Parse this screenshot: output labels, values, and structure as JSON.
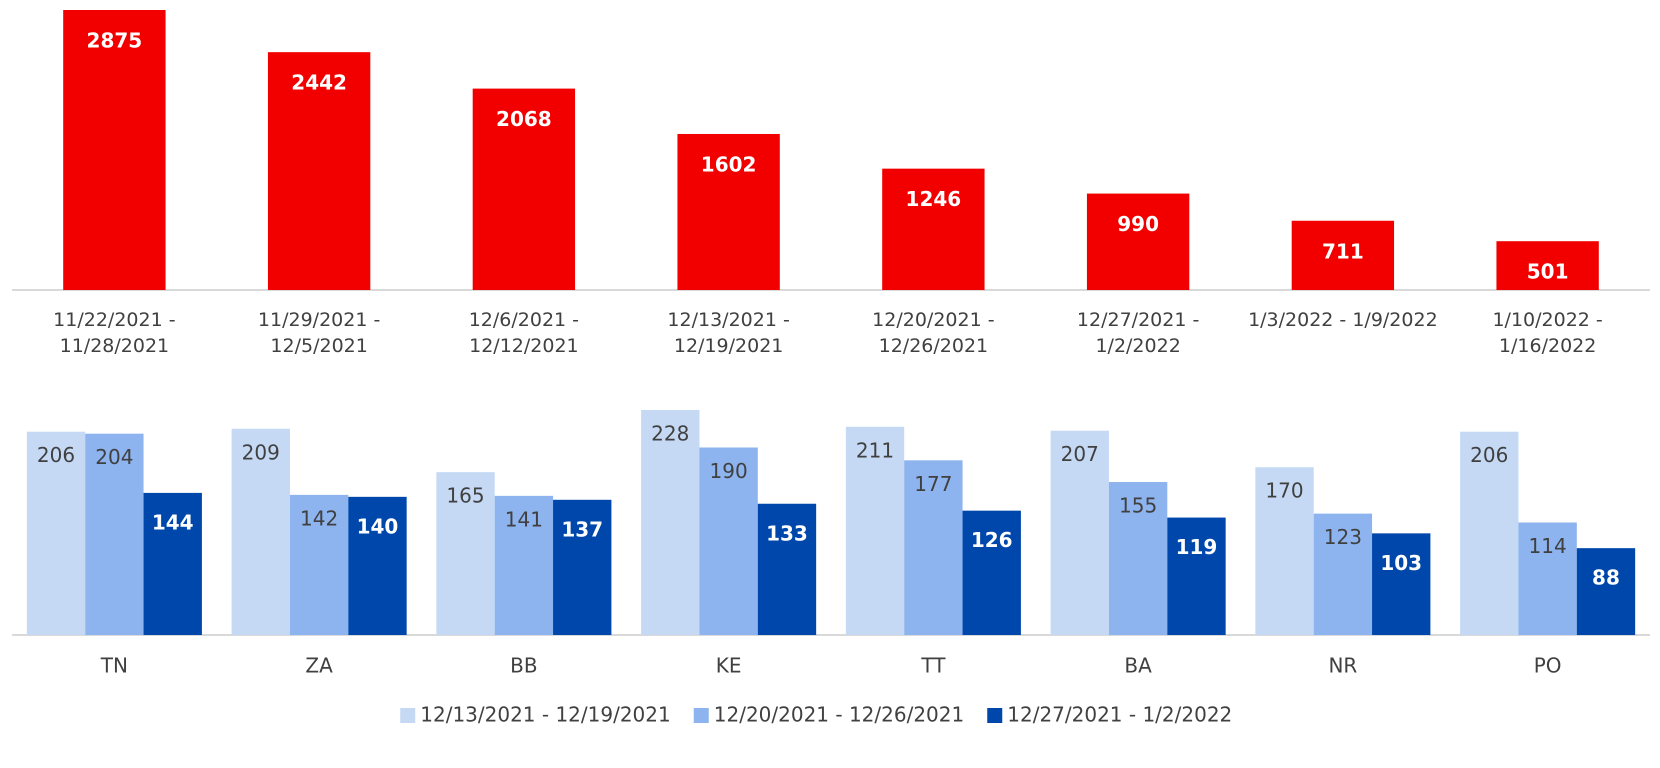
{
  "chart_data": [
    {
      "type": "bar",
      "color": "#f20000",
      "categories": [
        "11/22/2021 - 11/28/2021",
        "11/29/2021 - 12/5/2021",
        "12/6/2021 - 12/12/2021",
        "12/13/2021 - 12/19/2021",
        "12/20/2021 - 12/26/2021",
        "12/27/2021 - 1/2/2022",
        "1/3/2022 - 1/9/2022",
        "1/10/2022 - 1/16/2022"
      ],
      "values": [
        2875,
        2442,
        2068,
        1602,
        1246,
        990,
        711,
        501
      ]
    },
    {
      "type": "grouped_bar",
      "legend": "bottom",
      "categories": [
        "TN",
        "ZA",
        "BB",
        "KE",
        "TT",
        "BA",
        "NR",
        "PO"
      ],
      "series": [
        {
          "name": "12/13/2021 - 12/19/2021",
          "color": "#c5d9f5",
          "values": [
            206,
            209,
            165,
            228,
            211,
            207,
            170,
            206
          ]
        },
        {
          "name": "12/20/2021 - 12/26/2021",
          "color": "#8db4ee",
          "values": [
            204,
            142,
            141,
            190,
            177,
            155,
            123,
            114
          ]
        },
        {
          "name": "12/27/2021 - 1/2/2022",
          "color": "#0047ab",
          "values": [
            144,
            140,
            137,
            133,
            126,
            119,
            103,
            88
          ]
        }
      ]
    }
  ]
}
